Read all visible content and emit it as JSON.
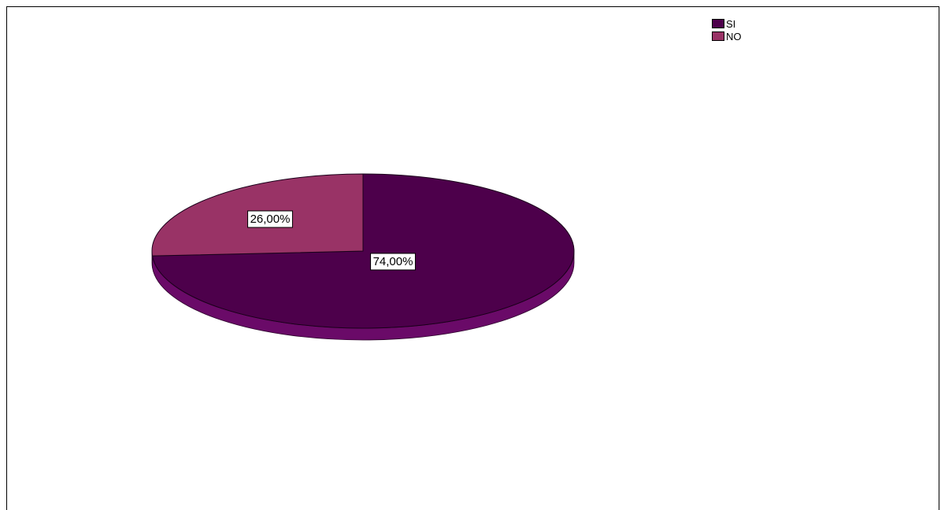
{
  "chart_data": {
    "type": "pie",
    "style": "3d",
    "categories": [
      "SI",
      "NO"
    ],
    "values": [
      74.0,
      26.0
    ],
    "data_labels": [
      "74,00%",
      "26,00%"
    ],
    "colors": [
      "#4d004b",
      "#993366"
    ],
    "side_colors": [
      "#6a0a68",
      "#6a2248"
    ],
    "legend": {
      "placement": "top-right",
      "entries": [
        "SI",
        "NO"
      ]
    }
  }
}
